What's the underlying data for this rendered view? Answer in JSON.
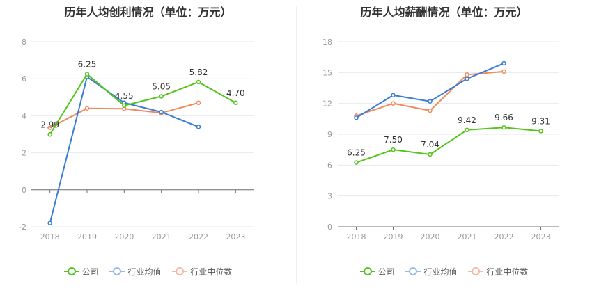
{
  "colors": {
    "company": "#52c41a",
    "industry_avg": "#3a7bd5",
    "industry_median": "#f08a5d"
  },
  "legend": {
    "company": "公司",
    "industry_avg": "行业均值",
    "industry_median": "行业中位数"
  },
  "chart_data": [
    {
      "type": "line",
      "title": "历年人均创利情况（单位：万元）",
      "categories": [
        "2018",
        "2019",
        "2020",
        "2021",
        "2022",
        "2023"
      ],
      "ylim": [
        -2,
        8
      ],
      "yticks": [
        -2,
        0,
        2,
        4,
        6,
        8
      ],
      "grid": true,
      "legend_position": "bottom",
      "series": [
        {
          "name": "公司",
          "key": "company",
          "values": [
            2.99,
            6.25,
            4.55,
            5.05,
            5.82,
            4.7
          ],
          "labels": [
            "2.99",
            "6.25",
            "4.55",
            "5.05",
            "5.82",
            "4.70"
          ]
        },
        {
          "name": "行业均值",
          "key": "industry_avg",
          "values": [
            -1.8,
            6.1,
            4.7,
            4.2,
            3.4,
            null
          ]
        },
        {
          "name": "行业中位数",
          "key": "industry_median",
          "values": [
            3.35,
            4.4,
            4.38,
            4.15,
            4.7,
            null
          ]
        }
      ]
    },
    {
      "type": "line",
      "title": "历年人均薪酬情况（单位：万元）",
      "categories": [
        "2018",
        "2019",
        "2020",
        "2021",
        "2022",
        "2023"
      ],
      "ylim": [
        0,
        18
      ],
      "yticks": [
        0,
        3,
        6,
        9,
        12,
        15,
        18
      ],
      "grid": true,
      "legend_position": "bottom",
      "series": [
        {
          "name": "公司",
          "key": "company",
          "values": [
            6.25,
            7.5,
            7.04,
            9.42,
            9.66,
            9.31
          ],
          "labels": [
            "6.25",
            "7.50",
            "7.04",
            "9.42",
            "9.66",
            "9.31"
          ]
        },
        {
          "name": "行业均值",
          "key": "industry_avg",
          "values": [
            10.6,
            12.8,
            12.2,
            14.4,
            15.9,
            null
          ]
        },
        {
          "name": "行业中位数",
          "key": "industry_median",
          "values": [
            10.8,
            12.0,
            11.3,
            14.8,
            15.1,
            null
          ]
        }
      ]
    }
  ]
}
